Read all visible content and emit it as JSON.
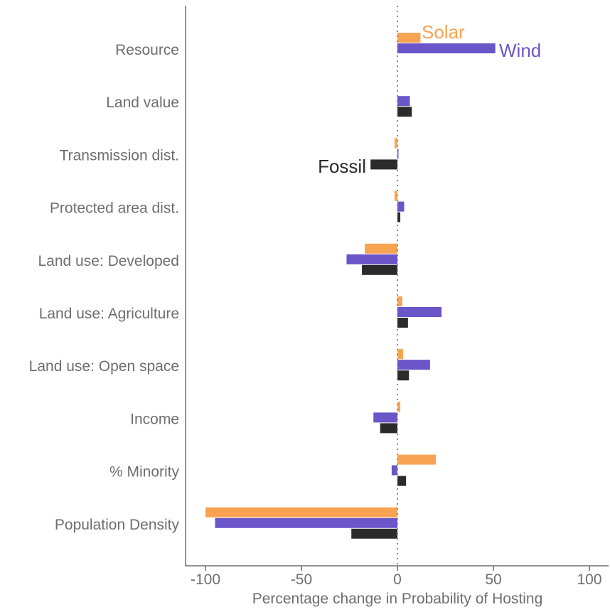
{
  "chart_data": {
    "type": "bar",
    "orientation": "horizontal",
    "categories": [
      "Resource",
      "Land value",
      "Transmission dist.",
      "Protected area dist.",
      "Land use: Developed",
      "Land use: Agriculture",
      "Land use: Open space",
      "Income",
      "% Minority",
      "Population Density"
    ],
    "series": [
      {
        "name": "Solar",
        "color": "#f8a352",
        "values": [
          12,
          null,
          -1.5,
          -1.5,
          -17,
          2.5,
          3,
          1.5,
          20,
          -100
        ]
      },
      {
        "name": "Wind",
        "color": "#6a55c9",
        "values": [
          51,
          6.5,
          0.5,
          3.5,
          -26.5,
          23,
          17,
          -12.5,
          -3,
          -95
        ]
      },
      {
        "name": "Fossil",
        "color": "#2b2b2b",
        "values": [
          null,
          7.5,
          -14,
          1.5,
          -18.5,
          5.5,
          6,
          -9,
          4.5,
          -24
        ]
      }
    ],
    "xlabel": "Percentage change in Probability of Hosting",
    "ylabel": "",
    "title": "",
    "xlim": [
      -110,
      110
    ],
    "xticks": [
      -100,
      -50,
      0,
      50,
      100
    ],
    "xtick_labels": [
      "-100",
      "-50",
      "0",
      "50",
      "100"
    ],
    "reference_line": 0,
    "grid": false,
    "legend": "inline labels"
  }
}
